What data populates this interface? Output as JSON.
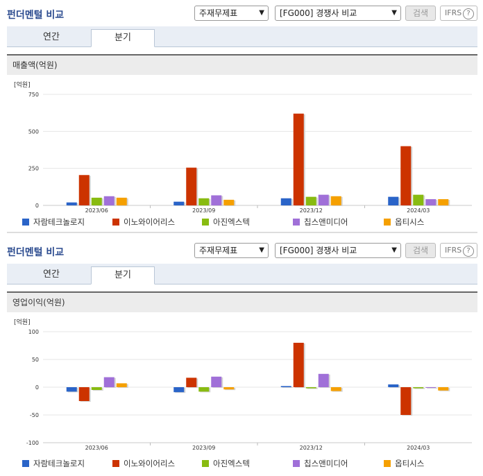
{
  "panels": [
    {
      "title": "펀더멘털 비교",
      "select1": "주재무제표",
      "select2": "[FG000] 경쟁사 비교",
      "search_label": "검색",
      "ifrs_label": "IFRS",
      "help_glyph": "?",
      "tabs": [
        "연간",
        "분기"
      ],
      "active_tab": 1,
      "section_title": "매출액(억원)"
    },
    {
      "title": "펀더멘털 비교",
      "select1": "주재무제표",
      "select2": "[FG000] 경쟁사 비교",
      "search_label": "검색",
      "ifrs_label": "IFRS",
      "help_glyph": "?",
      "tabs": [
        "연간",
        "분기"
      ],
      "active_tab": 1,
      "section_title": "영업이익(억원)"
    }
  ],
  "icons": {
    "dropdown": "chevron-down-icon",
    "help": "question-circle-icon"
  },
  "chart_data": [
    {
      "type": "bar",
      "unit_label": "[억원]",
      "categories": [
        "2023/06",
        "2023/09",
        "2023/12",
        "2024/03"
      ],
      "ylim": [
        0,
        750
      ],
      "yticks": [
        0,
        250,
        500,
        750
      ],
      "grid": true,
      "legend_position": "bottom",
      "series": [
        {
          "name": "자람테크놀로지",
          "color": "#2a64c8",
          "values": [
            20,
            25,
            48,
            58
          ]
        },
        {
          "name": "이노와이어리스",
          "color": "#cc3300",
          "values": [
            205,
            255,
            620,
            400
          ]
        },
        {
          "name": "아진엑스텍",
          "color": "#88bb11",
          "values": [
            52,
            48,
            58,
            72
          ]
        },
        {
          "name": "칩스앤미디어",
          "color": "#a070d8",
          "values": [
            62,
            68,
            72,
            42
          ]
        },
        {
          "name": "옵티시스",
          "color": "#f5a000",
          "values": [
            52,
            38,
            62,
            42
          ]
        }
      ]
    },
    {
      "type": "bar",
      "unit_label": "[억원]",
      "categories": [
        "2023/06",
        "2023/09",
        "2023/12",
        "2024/03"
      ],
      "ylim": [
        -100,
        100
      ],
      "yticks": [
        -100,
        -50,
        0,
        50,
        100
      ],
      "grid": true,
      "legend_position": "bottom",
      "series": [
        {
          "name": "자람테크놀로지",
          "color": "#2a64c8",
          "values": [
            -8,
            -9,
            2,
            5
          ]
        },
        {
          "name": "이노와이어리스",
          "color": "#cc3300",
          "values": [
            -25,
            17,
            80,
            -50
          ]
        },
        {
          "name": "아진엑스텍",
          "color": "#88bb11",
          "values": [
            -5,
            -8,
            -2,
            -2
          ]
        },
        {
          "name": "칩스앤미디어",
          "color": "#a070d8",
          "values": [
            18,
            19,
            24,
            0
          ]
        },
        {
          "name": "옵티시스",
          "color": "#f5a000",
          "values": [
            7,
            -4,
            -7,
            -6
          ]
        }
      ]
    }
  ]
}
